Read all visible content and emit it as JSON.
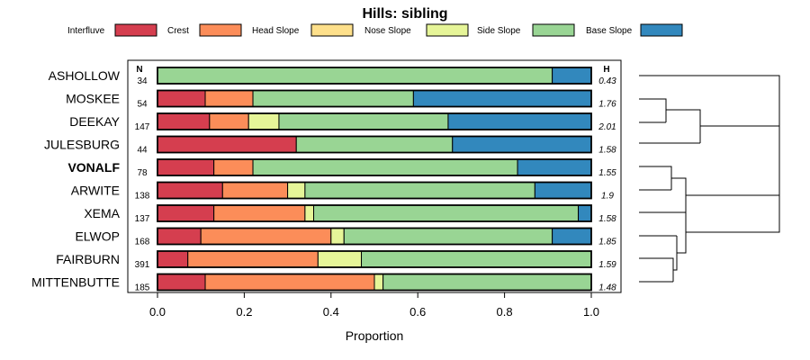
{
  "chart_data": {
    "type": "bar",
    "orientation": "horizontal",
    "stacked": true,
    "title": "Hills: sibling",
    "xlabel": "Proportion",
    "ylabel": "",
    "xlim": [
      0,
      1
    ],
    "xticks": [
      "0.0",
      "0.2",
      "0.4",
      "0.6",
      "0.8",
      "1.0"
    ],
    "n_header": "N",
    "h_header": "H",
    "legend": [
      {
        "name": "Interfluve",
        "color": "#D53E4F"
      },
      {
        "name": "Crest",
        "color": "#FC8D59"
      },
      {
        "name": "Head Slope",
        "color": "#FEE08B"
      },
      {
        "name": "Nose Slope",
        "color": "#E6F598"
      },
      {
        "name": "Side Slope",
        "color": "#99D594"
      },
      {
        "name": "Base Slope",
        "color": "#3288BD"
      }
    ],
    "categories": [
      "ASHOLLOW",
      "MOSKEE",
      "DEEKAY",
      "JULESBURG",
      "VONALF",
      "ARWITE",
      "XEMA",
      "ELWOP",
      "FAIRBURN",
      "MITTENBUTTE"
    ],
    "highlight": "VONALF",
    "n": [
      "34",
      "54",
      "147",
      "44",
      "78",
      "138",
      "137",
      "168",
      "391",
      "185"
    ],
    "h": [
      "0.43",
      "1.76",
      "2.01",
      "1.58",
      "1.55",
      "1.9",
      "1.58",
      "1.85",
      "1.59",
      "1.48"
    ],
    "series": [
      {
        "name": "Interfluve",
        "values": [
          0,
          0.11,
          0.12,
          0.32,
          0.13,
          0.15,
          0.13,
          0.1,
          0.07,
          0.11
        ]
      },
      {
        "name": "Crest",
        "values": [
          0,
          0.11,
          0.09,
          0,
          0.09,
          0.15,
          0.21,
          0.3,
          0.3,
          0.39
        ]
      },
      {
        "name": "Head Slope",
        "values": [
          0,
          0,
          0,
          0,
          0,
          0,
          0,
          0,
          0,
          0
        ]
      },
      {
        "name": "Nose Slope",
        "values": [
          0,
          0,
          0.07,
          0,
          0,
          0.04,
          0.02,
          0.03,
          0.1,
          0.02
        ]
      },
      {
        "name": "Side Slope",
        "values": [
          0.91,
          0.37,
          0.39,
          0.36,
          0.61,
          0.53,
          0.61,
          0.48,
          0.53,
          0.48
        ]
      },
      {
        "name": "Base Slope",
        "values": [
          0.09,
          0.41,
          0.33,
          0.32,
          0.17,
          0.13,
          0.03,
          0.09,
          0,
          0
        ]
      }
    ]
  }
}
